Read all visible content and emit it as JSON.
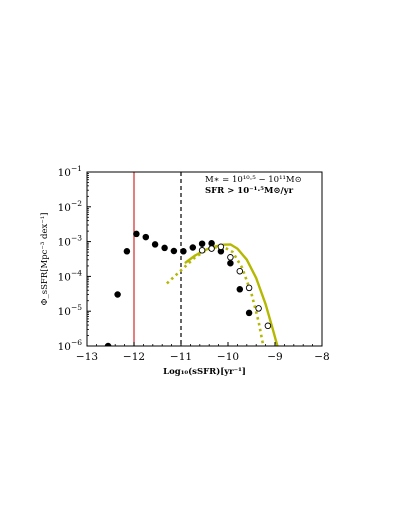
{
  "chart_data": {
    "type": "scatter",
    "xlabel": "Log₁₀(sSFR)[yr⁻¹]",
    "ylabel": "Φ_sSFR[Mpc⁻³ dex⁻¹]",
    "xlim": [
      -13,
      -8
    ],
    "ylim_log10": [
      -6,
      -1
    ],
    "xticks": [
      {
        "value": -13,
        "label": "−13"
      },
      {
        "value": -12,
        "label": "−12"
      },
      {
        "value": -11,
        "label": "−11"
      },
      {
        "value": -10,
        "label": "−10"
      },
      {
        "value": -9,
        "label": "−9"
      },
      {
        "value": -8,
        "label": "−8"
      }
    ],
    "yticks": [
      {
        "value": -6,
        "base": "10",
        "exp": "−6"
      },
      {
        "value": -5,
        "base": "10",
        "exp": "−5"
      },
      {
        "value": -4,
        "base": "10",
        "exp": "−4"
      },
      {
        "value": -3,
        "base": "10",
        "exp": "−3"
      },
      {
        "value": -2,
        "base": "10",
        "exp": "−2"
      },
      {
        "value": -1,
        "base": "10",
        "exp": "−1"
      }
    ],
    "annotations": [
      "M∗ = 10¹⁰·⁵ − 10¹¹M⊙",
      "SFR > 10⁻¹·⁵M⊙/yr"
    ],
    "vlines": [
      {
        "x": -12.0,
        "style": "solid",
        "color": "#d62728"
      },
      {
        "x": -11.0,
        "style": "dashed",
        "color": "#000000"
      }
    ],
    "series": [
      {
        "style": "filled-circles",
        "color": "#000000",
        "points": [
          {
            "x": -12.55,
            "y": -6.0
          },
          {
            "x": -12.35,
            "y": -4.52
          },
          {
            "x": -12.15,
            "y": -3.28
          },
          {
            "x": -11.95,
            "y": -2.78
          },
          {
            "x": -11.75,
            "y": -2.87
          },
          {
            "x": -11.55,
            "y": -3.08
          },
          {
            "x": -11.35,
            "y": -3.18
          },
          {
            "x": -11.15,
            "y": -3.27
          },
          {
            "x": -10.95,
            "y": -3.28
          },
          {
            "x": -10.75,
            "y": -3.17
          },
          {
            "x": -10.55,
            "y": -3.06
          },
          {
            "x": -10.35,
            "y": -3.05
          },
          {
            "x": -10.15,
            "y": -3.28
          },
          {
            "x": -9.95,
            "y": -3.62
          },
          {
            "x": -9.75,
            "y": -4.37
          },
          {
            "x": -9.55,
            "y": -5.05
          }
        ]
      },
      {
        "style": "open-circles",
        "color": "#000000",
        "points": [
          {
            "x": -10.55,
            "y": -3.25
          },
          {
            "x": -10.35,
            "y": -3.2
          },
          {
            "x": -10.15,
            "y": -3.15
          },
          {
            "x": -9.95,
            "y": -3.45
          },
          {
            "x": -9.75,
            "y": -3.85
          },
          {
            "x": -9.55,
            "y": -4.33
          },
          {
            "x": -9.35,
            "y": -4.92
          },
          {
            "x": -9.15,
            "y": -5.42
          }
        ]
      },
      {
        "style": "solid-line",
        "color": "#b5b800",
        "points": [
          {
            "x": -10.9,
            "y": -3.6
          },
          {
            "x": -10.7,
            "y": -3.4
          },
          {
            "x": -10.5,
            "y": -3.25
          },
          {
            "x": -10.3,
            "y": -3.15
          },
          {
            "x": -10.1,
            "y": -3.09
          },
          {
            "x": -9.95,
            "y": -3.08
          },
          {
            "x": -9.8,
            "y": -3.2
          },
          {
            "x": -9.6,
            "y": -3.52
          },
          {
            "x": -9.4,
            "y": -4.05
          },
          {
            "x": -9.2,
            "y": -4.8
          },
          {
            "x": -9.05,
            "y": -5.5
          },
          {
            "x": -8.95,
            "y": -6.0
          }
        ]
      },
      {
        "style": "dotted-line",
        "color": "#b5b800",
        "points": [
          {
            "x": -11.3,
            "y": -4.2
          },
          {
            "x": -11.1,
            "y": -3.95
          },
          {
            "x": -10.9,
            "y": -3.7
          },
          {
            "x": -10.7,
            "y": -3.45
          },
          {
            "x": -10.5,
            "y": -3.28
          },
          {
            "x": -10.3,
            "y": -3.17
          },
          {
            "x": -10.1,
            "y": -3.15
          },
          {
            "x": -9.9,
            "y": -3.3
          },
          {
            "x": -9.7,
            "y": -3.75
          },
          {
            "x": -9.5,
            "y": -4.5
          },
          {
            "x": -9.35,
            "y": -5.3
          },
          {
            "x": -9.25,
            "y": -6.0
          }
        ]
      }
    ]
  }
}
